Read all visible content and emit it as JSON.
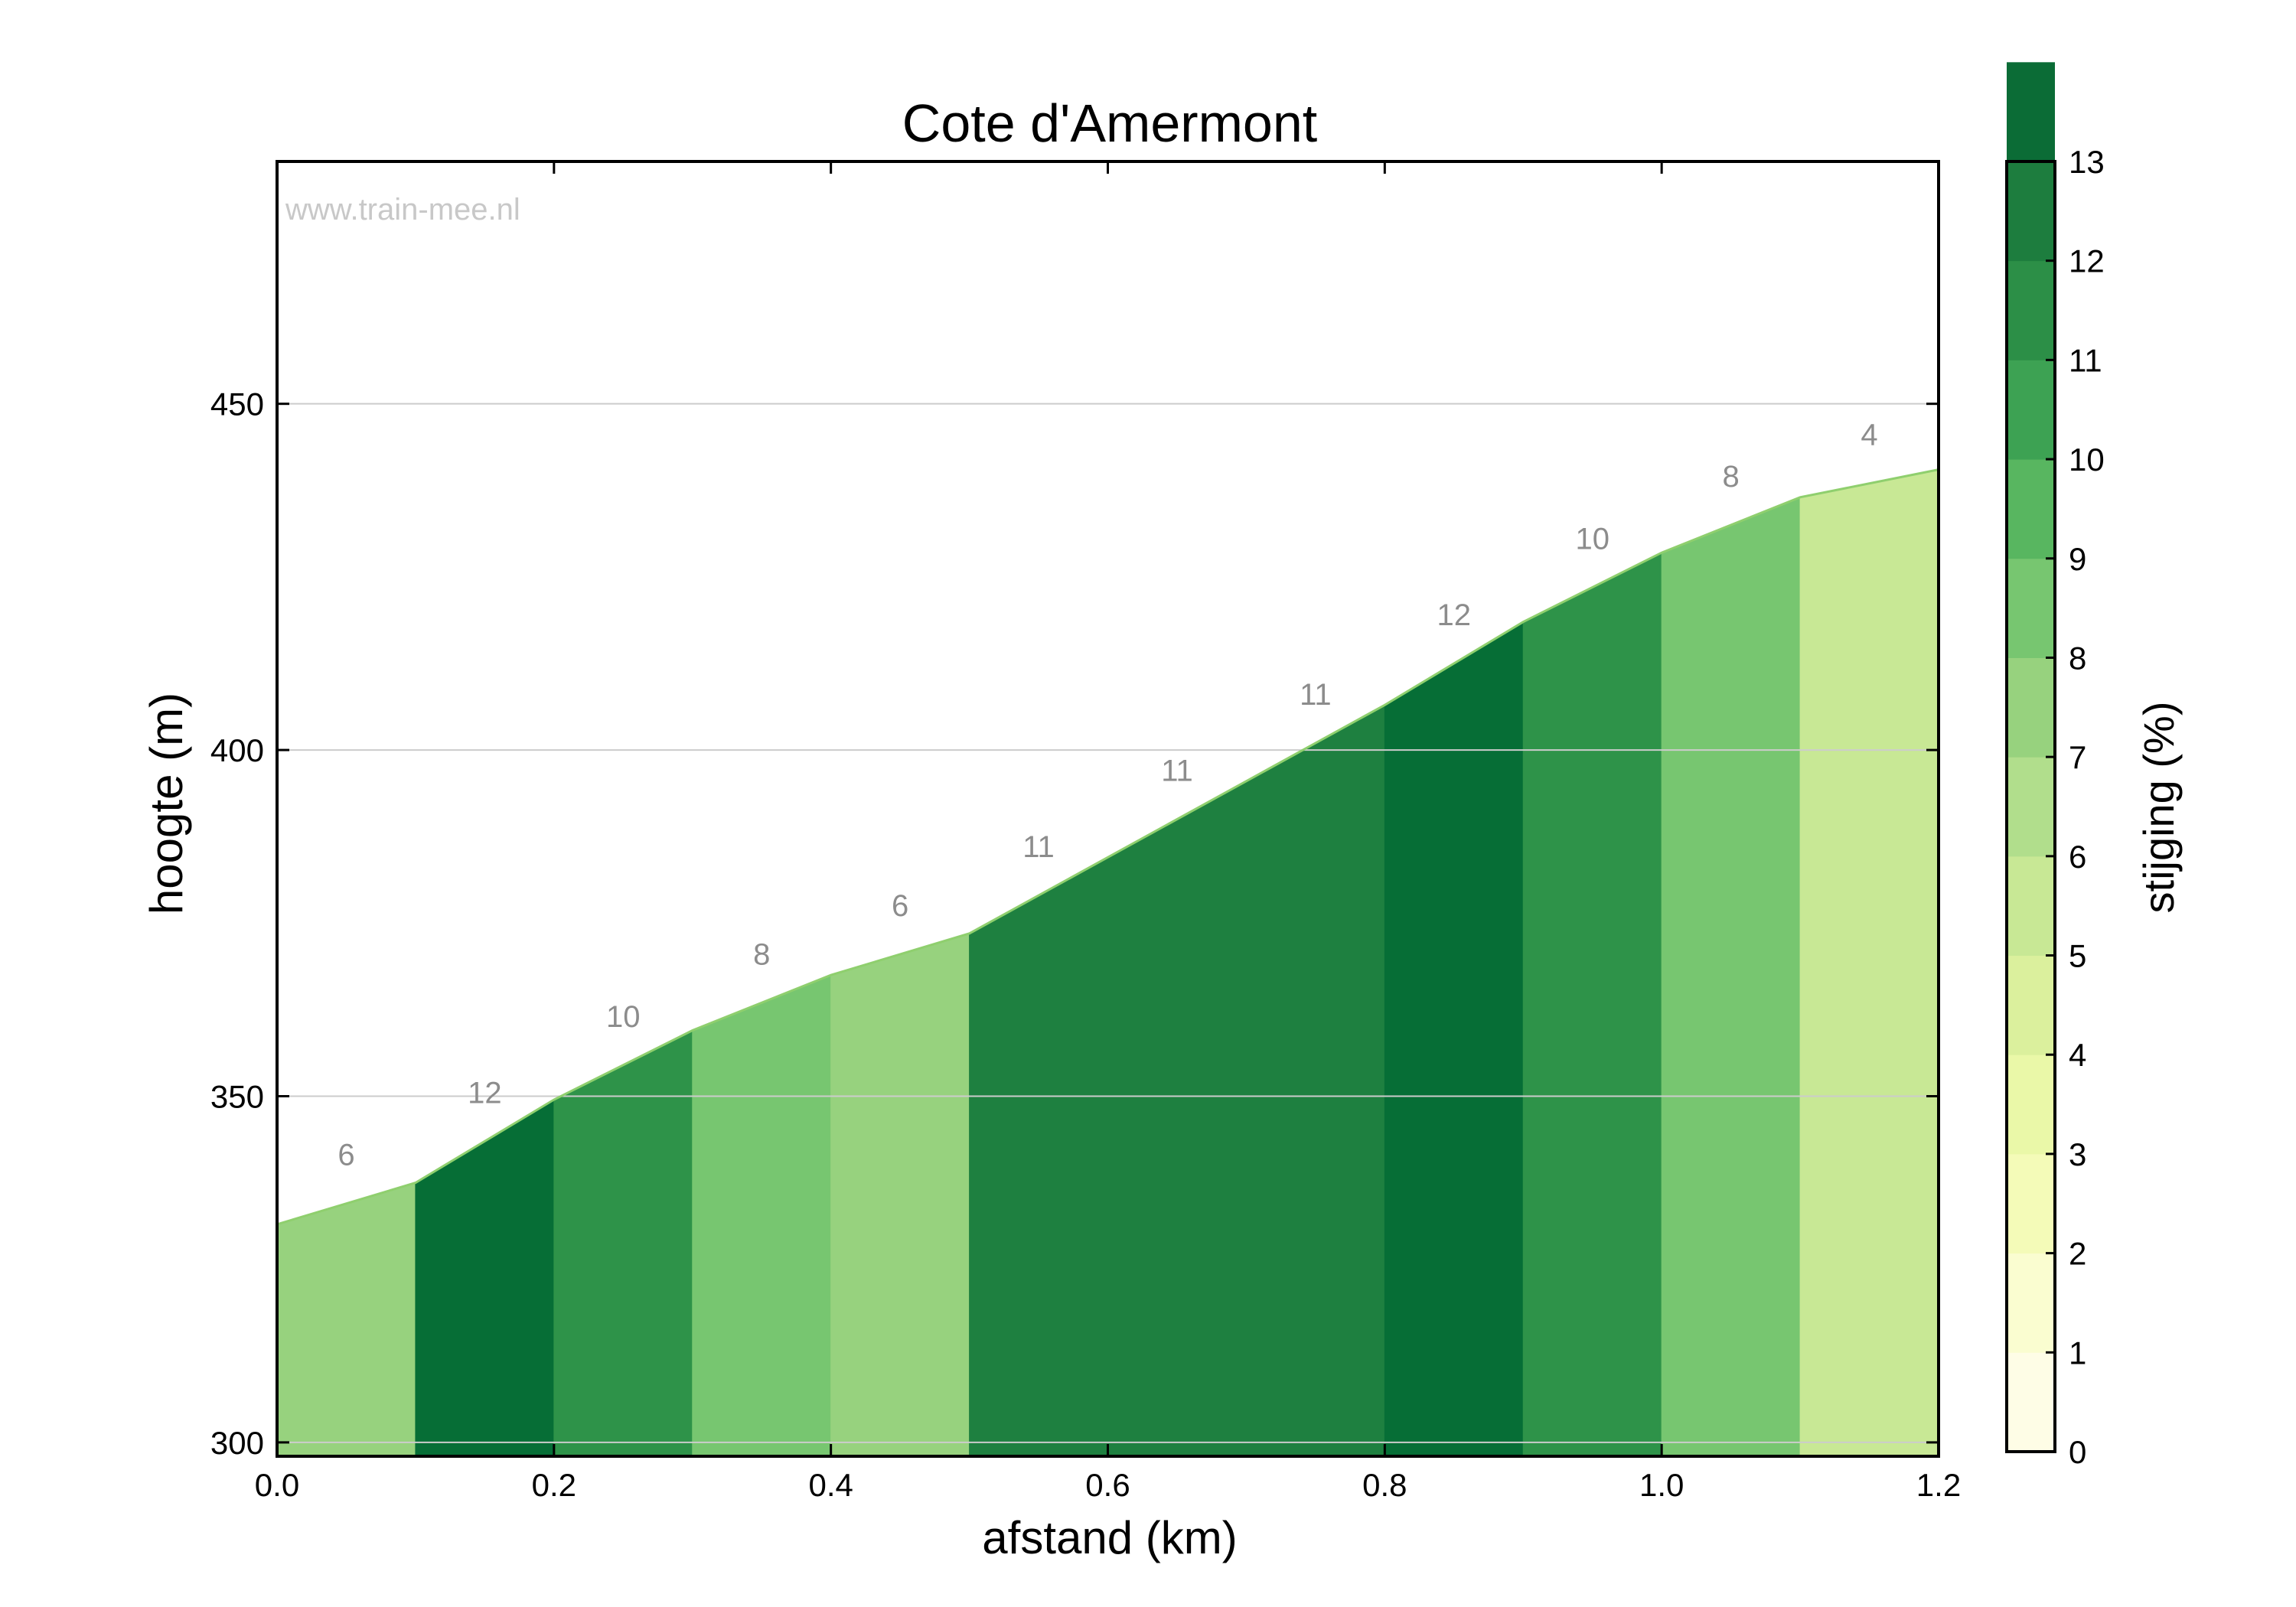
{
  "chart_data": {
    "type": "area",
    "title": "Cote d'Amermont",
    "xlabel": "afstand (km)",
    "ylabel": "hoogte (m)",
    "watermark": "www.train-mee.nl",
    "xlim": [
      0,
      1.2
    ],
    "ylim": [
      298,
      485
    ],
    "x_ticks": [
      "0.0",
      "0.2",
      "0.4",
      "0.6",
      "0.8",
      "1.0",
      "1.2"
    ],
    "y_ticks": [
      "300",
      "350",
      "400",
      "450"
    ],
    "grid": true,
    "x": [
      0.0,
      0.1,
      0.2,
      0.3,
      0.4,
      0.5,
      0.6,
      0.7,
      0.8,
      0.9,
      1.0,
      1.1,
      1.2
    ],
    "elevation": [
      331.5,
      337.5,
      349.5,
      359.5,
      367.5,
      373.5,
      384.5,
      395.5,
      406.5,
      418.5,
      428.5,
      436.5,
      440.5
    ],
    "segment_gradients": [
      6,
      12,
      10,
      8,
      6,
      11,
      11,
      11,
      12,
      10,
      8,
      4
    ],
    "colorbar": {
      "label": "stijging (%)",
      "min": 0,
      "max": 13,
      "tick_labels": [
        "0",
        "1",
        "2",
        "3",
        "4",
        "5",
        "6",
        "7",
        "8",
        "9",
        "10",
        "11",
        "12",
        "13"
      ],
      "bands": [
        "#fefde6",
        "#fafdd0",
        "#f4fbb8",
        "#eaf8a8",
        "#dbf09d",
        "#c8e895",
        "#b1de8c",
        "#97d27e",
        "#77c670",
        "#58b660",
        "#3da253",
        "#2c8f47",
        "#1d7d3e",
        "#0b6c36"
      ]
    },
    "colors": {
      "4": "#c8e895",
      "6": "#97d27e",
      "8": "#77c670",
      "10": "#2e9349",
      "11": "#1e8040",
      "12": "#066e36",
      "outline": "#8fcf6e",
      "grid": "#cccccc",
      "gradient_label": "#8c8c8c",
      "watermark": "#c8c8c8"
    }
  }
}
